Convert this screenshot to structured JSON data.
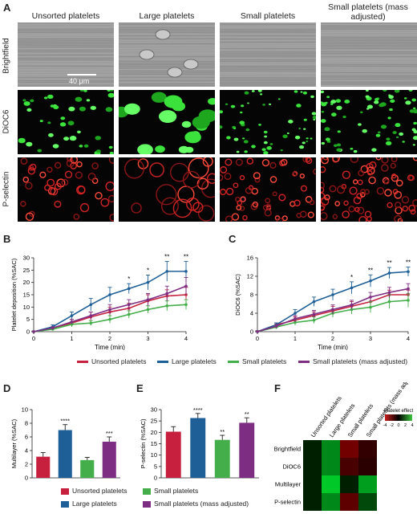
{
  "panels": {
    "A": "A",
    "B": "B",
    "C": "C",
    "D": "D",
    "E": "E",
    "F": "F"
  },
  "micrograph": {
    "columns": [
      "Unsorted platelets",
      "Large platelets",
      "Small platelets",
      "Small platelets (mass adjusted)"
    ],
    "rows": [
      "Brightfield",
      "DiOC6",
      "P-selectin"
    ],
    "scale_bar": "40 μm"
  },
  "colors": {
    "unsorted": "#c6203e",
    "large": "#1f5f97",
    "small": "#43ae4a",
    "mass": "#7d2e82"
  },
  "chart_data": [
    {
      "id": "B",
      "type": "line",
      "xlabel": "Time (min)",
      "ylabel": "Platelet deposition (%SAC)",
      "xlim": [
        0,
        4
      ],
      "ylim": [
        0,
        30
      ],
      "xticks": [
        0,
        1,
        2,
        3,
        4
      ],
      "yticks": [
        0,
        5,
        10,
        15,
        20,
        25,
        30
      ],
      "x": [
        0,
        0.5,
        1,
        1.5,
        2,
        2.5,
        3,
        3.5,
        4
      ],
      "series": [
        {
          "name": "Unsorted platelets",
          "color": "#c6203e",
          "values": [
            0,
            1.5,
            3.5,
            6,
            8,
            9.5,
            12.5,
            14.5,
            15
          ],
          "err": [
            0.3,
            0.5,
            1.5,
            2,
            2,
            2,
            2.5,
            2.5,
            3
          ]
        },
        {
          "name": "Large platelets",
          "color": "#1f5f97",
          "values": [
            0,
            2,
            6.5,
            11,
            15,
            17.5,
            20,
            24.5,
            24.5
          ],
          "err": [
            0.3,
            0.8,
            1.5,
            2.5,
            3,
            2,
            3,
            4,
            4
          ]
        },
        {
          "name": "Small platelets",
          "color": "#43ae4a",
          "values": [
            0,
            1,
            3,
            3.5,
            5,
            7,
            9,
            10.5,
            11
          ],
          "err": [
            0.2,
            0.5,
            1,
            1,
            1.5,
            1.5,
            1.5,
            2,
            2
          ]
        },
        {
          "name": "Small platelets (mass adjusted)",
          "color": "#7d2e82",
          "values": [
            0,
            1.5,
            4,
            6.5,
            9,
            11,
            13,
            15.5,
            18.5
          ],
          "err": [
            0.3,
            0.5,
            1,
            1.5,
            2,
            2,
            2.5,
            3,
            3.5
          ]
        }
      ],
      "annotations": [
        {
          "x": 2.5,
          "text": "*"
        },
        {
          "x": 3,
          "text": "*"
        },
        {
          "x": 3.5,
          "text": "**"
        },
        {
          "x": 4,
          "text": "**"
        }
      ]
    },
    {
      "id": "C",
      "type": "line",
      "xlabel": "Time (min)",
      "ylabel": "DiOC6 (%SAC)",
      "xlim": [
        0,
        4
      ],
      "ylim": [
        0,
        16
      ],
      "xticks": [
        0,
        1,
        2,
        3,
        4
      ],
      "yticks": [
        0,
        4,
        8,
        12,
        16
      ],
      "x": [
        0,
        0.5,
        1,
        1.5,
        2,
        2.5,
        3,
        3.5,
        4
      ],
      "series": [
        {
          "name": "Unsorted platelets",
          "color": "#c6203e",
          "values": [
            0,
            1.5,
            2.5,
            3.5,
            4.5,
            5.5,
            6.5,
            8,
            8
          ],
          "err": [
            0.2,
            0.4,
            0.7,
            0.8,
            1,
            1,
            1,
            1,
            1
          ]
        },
        {
          "name": "Large platelets",
          "color": "#1f5f97",
          "values": [
            0,
            1.5,
            4,
            6.5,
            8,
            9.5,
            11,
            12.7,
            13
          ],
          "err": [
            0.2,
            0.4,
            0.8,
            1,
            1.2,
            1.3,
            1.3,
            1.2,
            1
          ]
        },
        {
          "name": "Small platelets",
          "color": "#43ae4a",
          "values": [
            0,
            1,
            2,
            2.5,
            4,
            4.8,
            5.3,
            6.5,
            6.8
          ],
          "err": [
            0.2,
            0.4,
            0.6,
            0.7,
            0.9,
            1,
            1.2,
            1.5,
            1.5
          ]
        },
        {
          "name": "Small platelets (mass adjusted)",
          "color": "#7d2e82",
          "values": [
            0,
            1.2,
            2.8,
            3.8,
            4.8,
            5.8,
            7.5,
            8.5,
            9.3
          ],
          "err": [
            0.2,
            0.4,
            0.7,
            0.8,
            1,
            1,
            1,
            1.1,
            1.1
          ]
        }
      ],
      "annotations": [
        {
          "x": 2.5,
          "text": "*"
        },
        {
          "x": 3,
          "text": "**"
        },
        {
          "x": 3.5,
          "text": "**"
        },
        {
          "x": 4,
          "text": "**"
        }
      ]
    },
    {
      "id": "D",
      "type": "bar",
      "ylabel": "Multilayer (%SAC)",
      "ylim": [
        0,
        10
      ],
      "yticks": [
        0,
        2,
        4,
        6,
        8,
        10
      ],
      "categories": [
        "Unsorted platelets",
        "Large platelets",
        "Small platelets",
        "Small platelets (mass adjusted)"
      ],
      "values": [
        3.1,
        7,
        2.6,
        5.3
      ],
      "err": [
        0.6,
        0.8,
        0.4,
        0.7
      ],
      "colors": [
        "#c6203e",
        "#1f5f97",
        "#43ae4a",
        "#7d2e82"
      ],
      "sig": [
        "",
        "****",
        "",
        "***"
      ]
    },
    {
      "id": "E",
      "type": "bar",
      "ylabel": "P-selectin (%SAC)",
      "ylim": [
        0,
        30
      ],
      "yticks": [
        0,
        5,
        10,
        15,
        20,
        25,
        30
      ],
      "categories": [
        "Unsorted platelets",
        "Large platelets",
        "Small platelets",
        "Small platelets (mass adjusted)"
      ],
      "values": [
        20.3,
        26.3,
        16.7,
        24.2
      ],
      "err": [
        2.2,
        2,
        2,
        2.2
      ],
      "colors": [
        "#c6203e",
        "#1f5f97",
        "#43ae4a",
        "#7d2e82"
      ],
      "sig": [
        "",
        "****",
        "**",
        "**"
      ]
    },
    {
      "id": "F",
      "type": "heatmap",
      "columns": [
        "Unsorted platelets",
        "Large platelets",
        "Small platelets",
        "Small platelets (mass adjusted)"
      ],
      "rows": [
        "Brightfield",
        "DiOC6",
        "Multilayer",
        "P-selectin"
      ],
      "values": [
        [
          0,
          2.5,
          -2,
          -0.5
        ],
        [
          0,
          2.5,
          -1,
          -0.3
        ],
        [
          0,
          4,
          0,
          3
        ],
        [
          0,
          2.5,
          -1.5,
          1
        ]
      ],
      "colorbar_title": "Platelet effect",
      "colorbar_ticks": [
        "-4",
        "-2",
        "0",
        "2",
        "4"
      ]
    }
  ],
  "legend": [
    "Unsorted platelets",
    "Large platelets",
    "Small platelets",
    "Small platelets (mass adjusted)"
  ]
}
